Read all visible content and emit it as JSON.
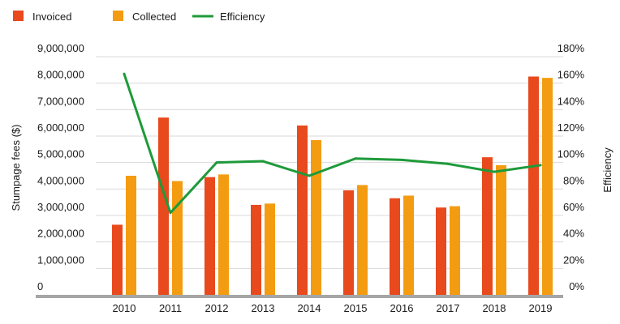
{
  "chart_data": {
    "type": "bar+line",
    "categories": [
      "2010",
      "2011",
      "2012",
      "2013",
      "2014",
      "2015",
      "2016",
      "2017",
      "2018",
      "2019"
    ],
    "series": [
      {
        "name": "Invoiced",
        "type": "bar",
        "axis": "left",
        "color": "#e8491d",
        "values": [
          2650000,
          6700000,
          4450000,
          3400000,
          6400000,
          3950000,
          3650000,
          3300000,
          5200000,
          8250000
        ]
      },
      {
        "name": "Collected",
        "type": "bar",
        "axis": "left",
        "color": "#f39c12",
        "values": [
          4500000,
          4300000,
          4550000,
          3450000,
          5850000,
          4150000,
          3750000,
          3350000,
          4900000,
          8200000
        ]
      },
      {
        "name": "Efficiency",
        "type": "line",
        "axis": "right",
        "color": "#1e9a3a",
        "values": [
          167,
          62,
          100,
          101,
          90,
          103,
          102,
          99,
          93,
          98
        ]
      }
    ],
    "ylabel": "Stumpage fees ($)",
    "ylabel_right": "Efficiency",
    "ylim": [
      0,
      9000000
    ],
    "ylim_right": [
      0,
      180
    ],
    "yticks": [
      "0",
      "1,000,000",
      "2,000,000",
      "3,000,000",
      "4,000,000",
      "5,000,000",
      "6,000,000",
      "7,000,000",
      "8,000,000",
      "9,000,000"
    ],
    "yticks_right": [
      "0%",
      "20%",
      "40%",
      "60%",
      "80%",
      "100%",
      "120%",
      "140%",
      "160%",
      "180%"
    ],
    "grid": true,
    "legend_position": "top-left"
  }
}
